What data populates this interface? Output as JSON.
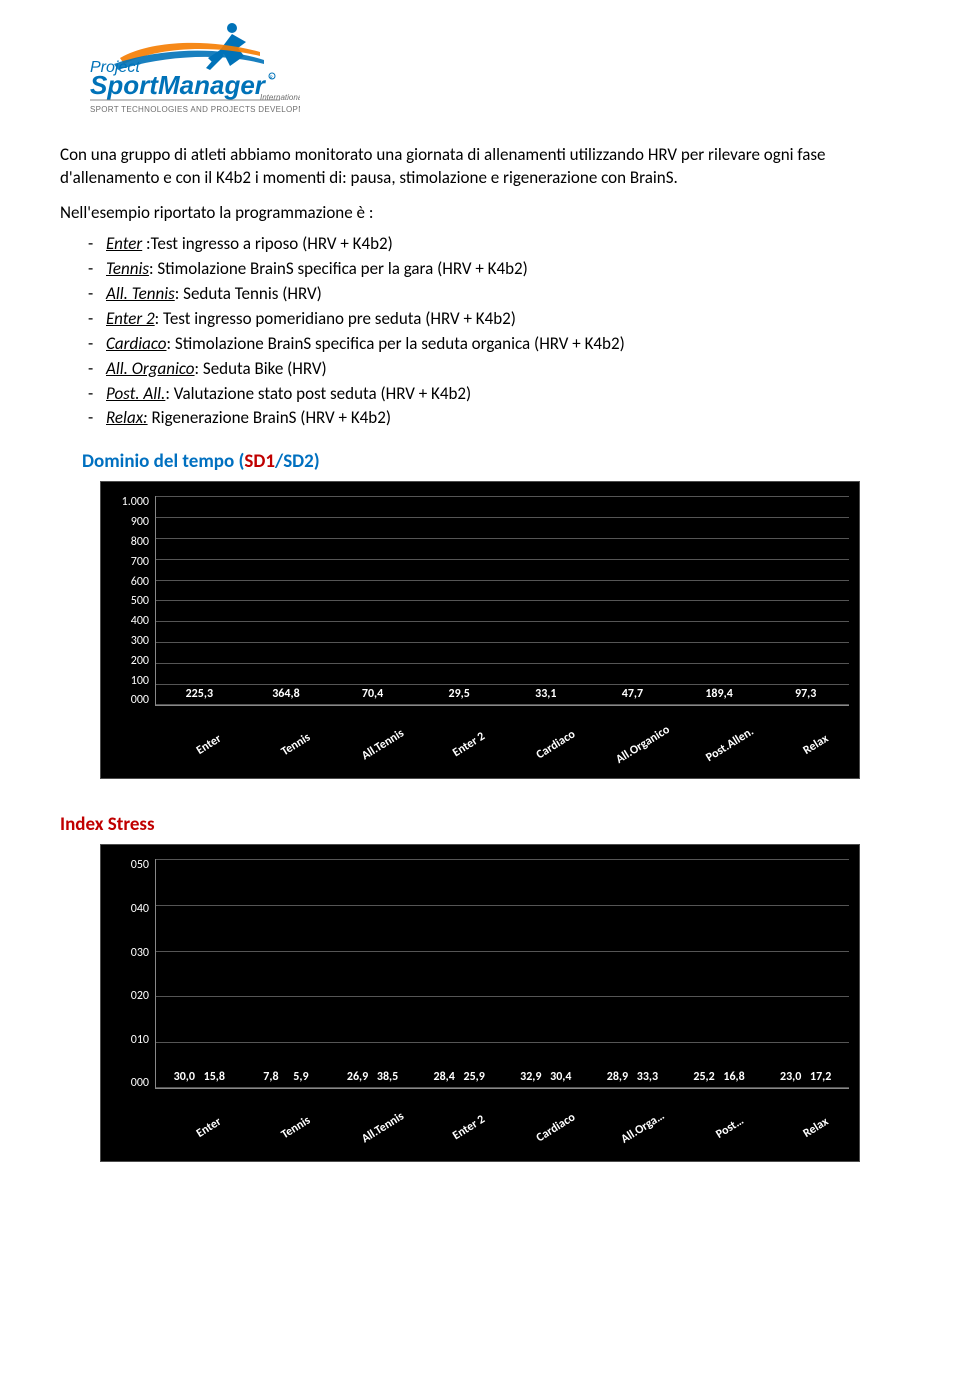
{
  "logo": {
    "top_text": "Project",
    "main_text": "Sport Manager",
    "sub_text": "SPORT TECHNOLOGIES AND PROJECTS DEVELOPMENT",
    "suffix": "International",
    "colors": {
      "blue": "#0072b8",
      "orange": "#f57c00",
      "grey": "#6f6f6f"
    }
  },
  "intro_text": "Con una gruppo di atleti abbiamo monitorato una giornata di allenamenti utilizzando HRV per rilevare ogni fase d'allenamento e con il K4b2 i momenti di: pausa, stimolazione e rigenerazione con BrainS.",
  "list_intro": "Nell'esempio riportato la programmazione è :",
  "legend_items": [
    {
      "term": "Enter",
      "desc": " :Test ingresso a riposo (HRV + K4b2)"
    },
    {
      "term": "Tennis",
      "desc": ": Stimolazione BrainS specifica per la gara (HRV + K4b2)"
    },
    {
      "term": "All. Tennis",
      "desc": ": Seduta Tennis (HRV)"
    },
    {
      "term": "Enter 2",
      "desc": ": Test ingresso pomeridiano pre seduta (HRV + K4b2)"
    },
    {
      "term": "Cardiaco",
      "desc": ": Stimolazione BrainS specifica per la seduta organica (HRV + K4b2)"
    },
    {
      "term": "All. Organico",
      "desc": ": Seduta Bike (HRV)"
    },
    {
      "term": "Post. All.",
      "desc": ": Valutazione stato post seduta (HRV + K4b2)"
    },
    {
      "term": "Relax:",
      "desc": " Rigenerazione BrainS (HRV + K4b2)"
    }
  ],
  "chart1": {
    "type": "bar",
    "title_prefix": "Dominio del tempo (",
    "title_sd1": "SD1",
    "title_sep": "/",
    "title_sd2": "SD2",
    "title_suffix": ")",
    "background_color": "#000000",
    "grid_color": "#555555",
    "text_color": "#ffffff",
    "bar_color": "#e30613",
    "ylim": [
      0,
      1000
    ],
    "y_ticks": [
      "1.000",
      "900",
      "800",
      "700",
      "600",
      "500",
      "400",
      "300",
      "200",
      "100",
      "000"
    ],
    "categories": [
      "Enter",
      "Tennis",
      "All.Tennis",
      "Enter 2",
      "Cardiaco",
      "All.Organico",
      "Post.Allen.",
      "Relax"
    ],
    "values": [
      225.3,
      364.8,
      70.4,
      29.5,
      33.1,
      47.7,
      189.4,
      97.3
    ],
    "value_labels": [
      "225,3",
      "364,8",
      "70,4",
      "29,5",
      "33,1",
      "47,7",
      "189,4",
      "97,3"
    ]
  },
  "chart2": {
    "type": "grouped-bar",
    "title": "Index Stress",
    "title_color": "#c00000",
    "background_color": "#000000",
    "grid_color": "#555555",
    "text_color": "#ffffff",
    "series_colors": {
      "s1": "#00a0e0",
      "s2": "#e30613"
    },
    "ylim": [
      0,
      50
    ],
    "y_ticks": [
      "050",
      "040",
      "030",
      "020",
      "010",
      "000"
    ],
    "categories": [
      "Enter",
      "Tennis",
      "All.Tennis",
      "Enter 2",
      "Cardiaco",
      "All.Orga…",
      "Post…",
      "Relax"
    ],
    "series1": [
      30.0,
      7.8,
      26.9,
      28.4,
      32.9,
      28.9,
      25.2,
      23.0
    ],
    "series1_labels": [
      "30,0",
      "7,8",
      "26,9",
      "28,4",
      "32,9",
      "28,9",
      "25,2",
      "23,0"
    ],
    "series2": [
      15.8,
      5.9,
      38.5,
      25.9,
      30.4,
      33.3,
      16.8,
      17.2
    ],
    "series2_labels": [
      "15,8",
      "5,9",
      "38,5",
      "25,9",
      "30,4",
      "33,3",
      "16,8",
      "17,2"
    ]
  }
}
